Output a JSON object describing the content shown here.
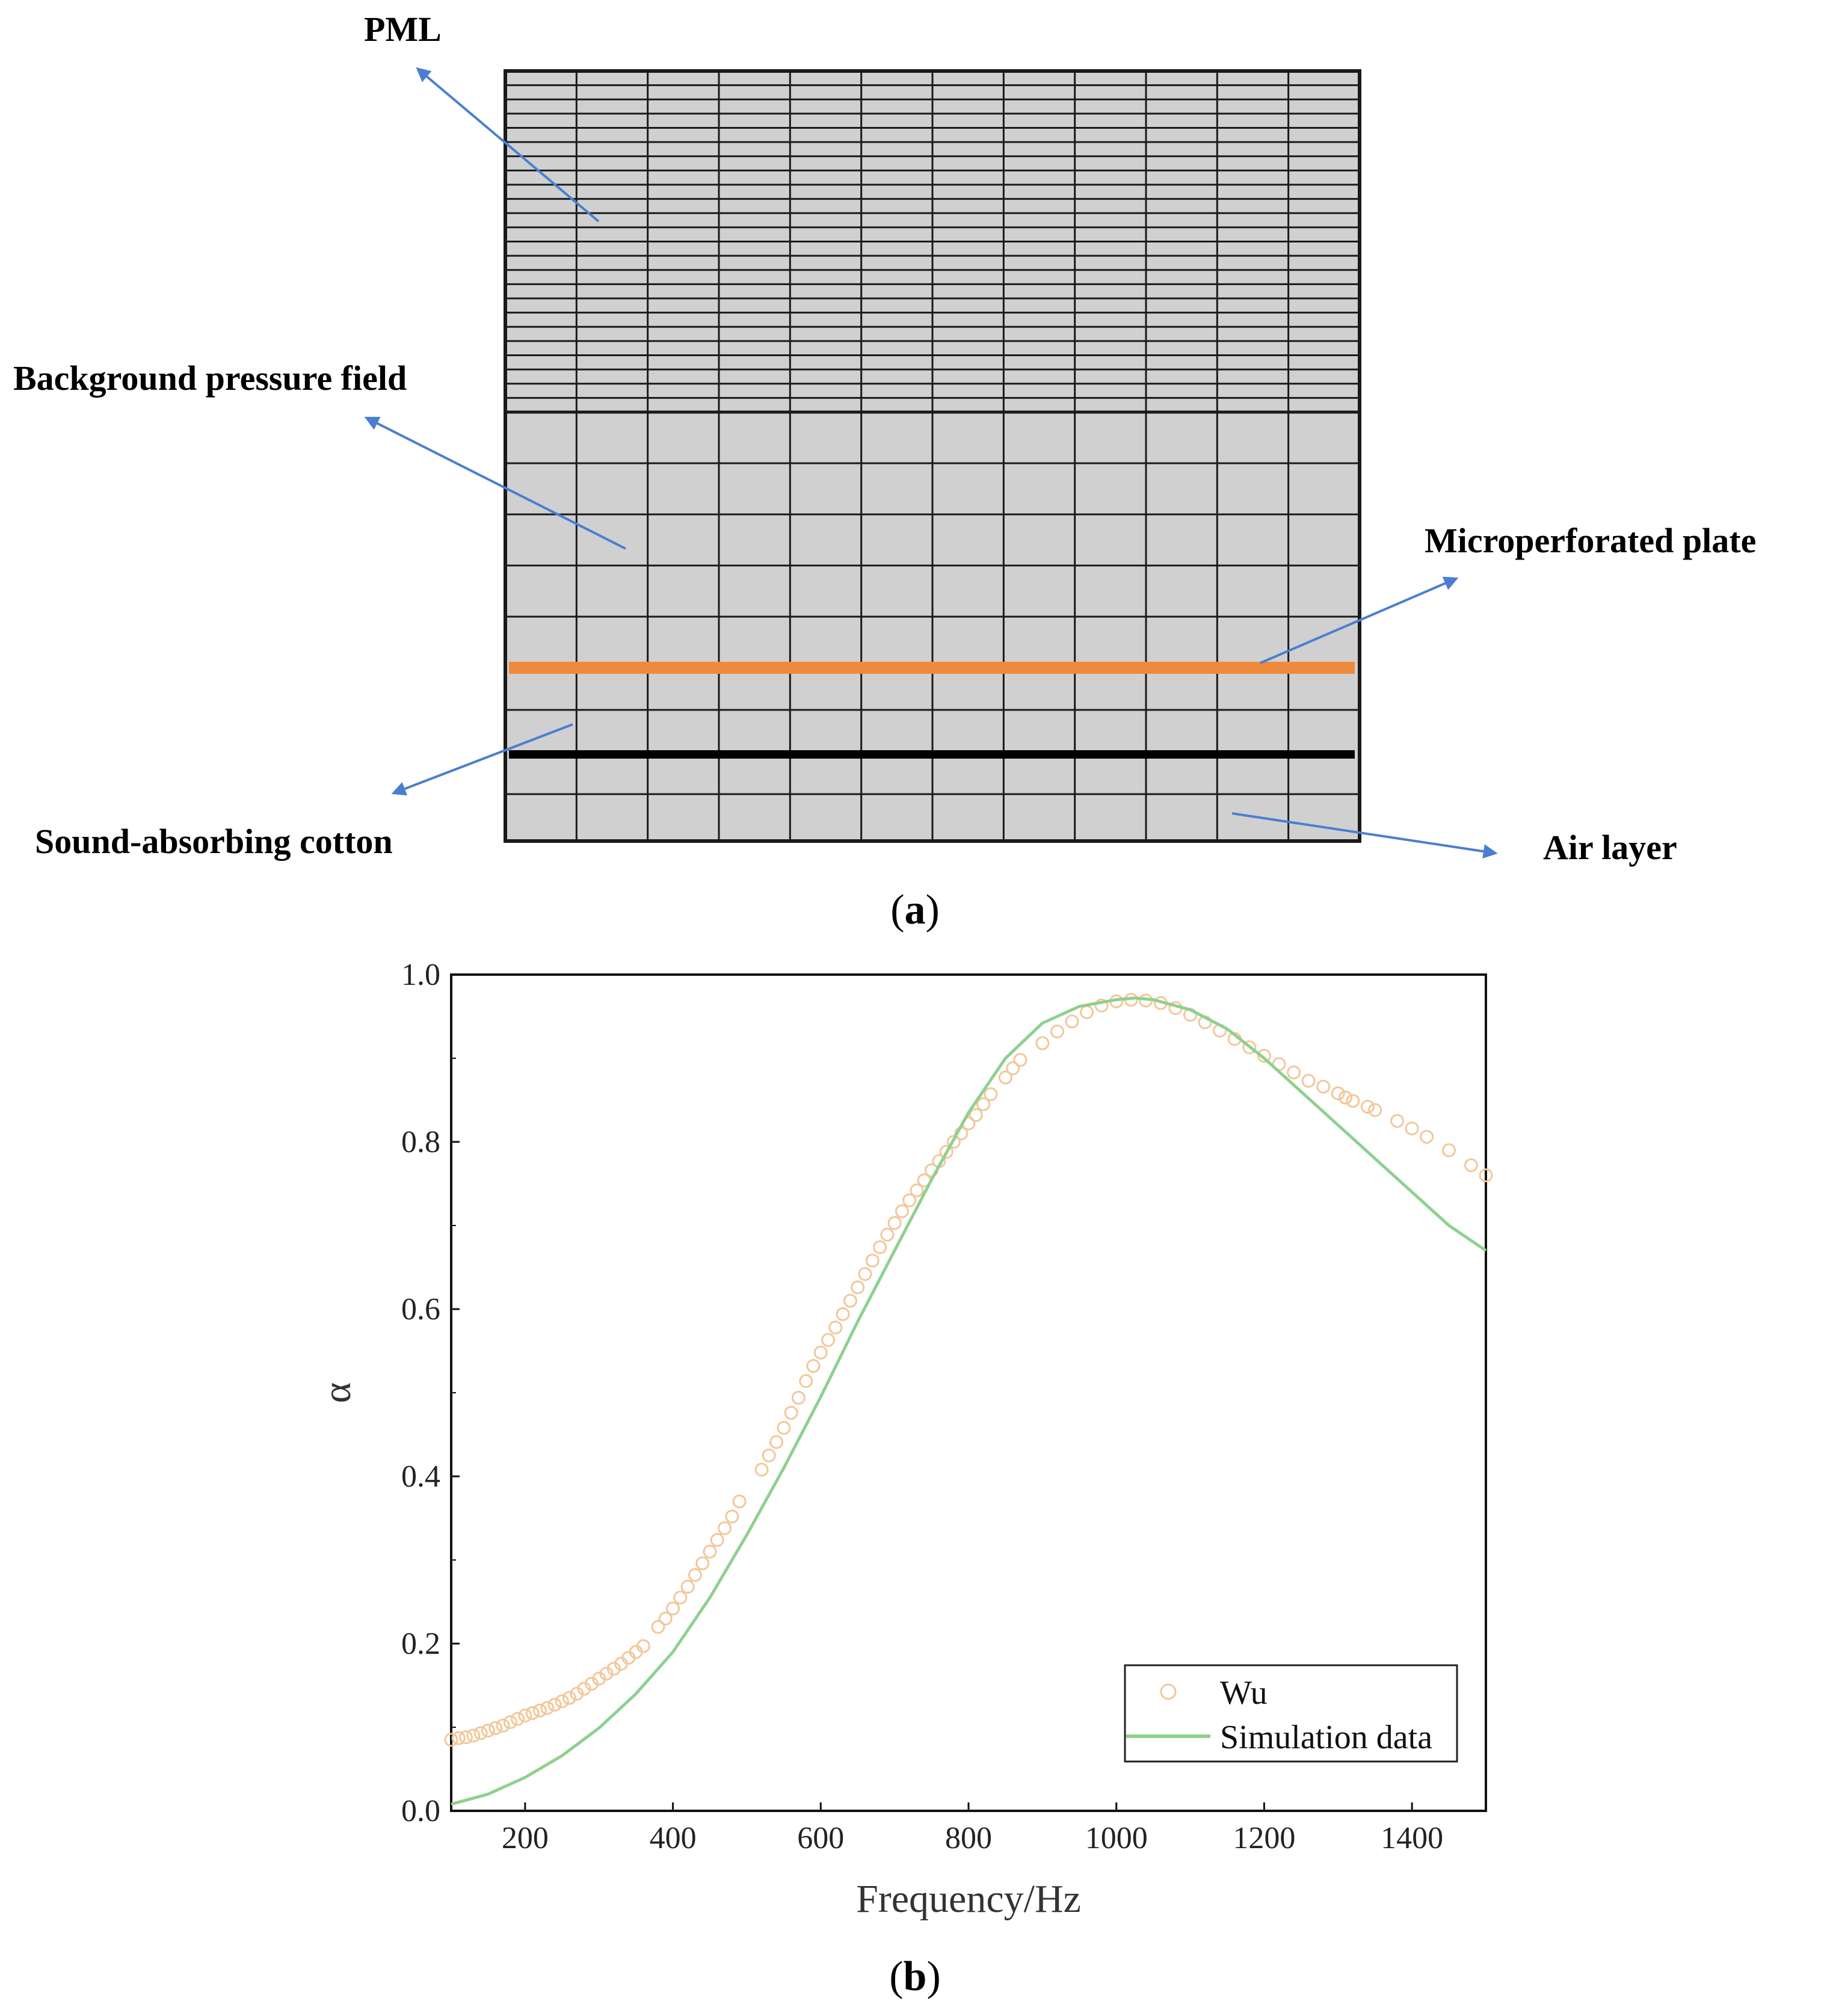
{
  "panel_a": {
    "panel_label_open": "(",
    "panel_label_letter": "a",
    "panel_label_close": ")",
    "labels": {
      "pml": "PML",
      "background": "Background pressure field",
      "plate": "Microperforated plate",
      "cotton": "Sound-absorbing cotton",
      "air": "Air layer"
    },
    "colors": {
      "fill": "#d0d0d0",
      "grid": "#1a1a1a",
      "arrow": "#4a7fd0",
      "plate": "#ef8a3c",
      "cotton_line": "#000000"
    }
  },
  "panel_b": {
    "panel_label_open": "(",
    "panel_label_letter": "b",
    "panel_label_close": ")",
    "colors": {
      "measured": "#f2c79a",
      "simulation": "#8fd08f"
    }
  },
  "chart_data": {
    "type": "line",
    "title": "",
    "xlabel": "Frequency/Hz",
    "ylabel": "α",
    "xlim": [
      100,
      1500
    ],
    "ylim": [
      0.0,
      1.0
    ],
    "xticks": [
      200,
      400,
      600,
      800,
      1000,
      1200,
      1400
    ],
    "xtick_labels": [
      "200",
      "400",
      "600",
      "800",
      "1000",
      "1200",
      "1400"
    ],
    "yticks": [
      0.0,
      0.2,
      0.4,
      0.6,
      0.8,
      1.0
    ],
    "ytick_labels": [
      "0.0",
      "0.2",
      "0.4",
      "0.6",
      "0.8",
      "1.0"
    ],
    "legend": [
      "Wu",
      "Simulation data"
    ],
    "legend_position": "bottom-right",
    "series": [
      {
        "name": "Wu",
        "style": "open-circles",
        "x": [
          100,
          110,
          120,
          130,
          140,
          150,
          160,
          170,
          180,
          190,
          200,
          210,
          220,
          230,
          240,
          250,
          260,
          270,
          280,
          290,
          300,
          310,
          320,
          330,
          340,
          350,
          360,
          380,
          390,
          400,
          410,
          420,
          430,
          440,
          450,
          460,
          470,
          480,
          490,
          520,
          530,
          540,
          550,
          560,
          570,
          580,
          590,
          600,
          610,
          620,
          630,
          640,
          650,
          660,
          670,
          680,
          690,
          700,
          710,
          720,
          730,
          740,
          750,
          760,
          770,
          780,
          790,
          800,
          810,
          820,
          830,
          850,
          860,
          870,
          900,
          920,
          940,
          960,
          980,
          1000,
          1020,
          1040,
          1060,
          1080,
          1100,
          1120,
          1140,
          1160,
          1180,
          1200,
          1220,
          1240,
          1260,
          1280,
          1300,
          1310,
          1320,
          1340,
          1350,
          1380,
          1400,
          1420,
          1450,
          1480,
          1500
        ],
        "y": [
          0.085,
          0.087,
          0.088,
          0.09,
          0.093,
          0.096,
          0.099,
          0.102,
          0.106,
          0.11,
          0.114,
          0.117,
          0.12,
          0.123,
          0.127,
          0.131,
          0.135,
          0.14,
          0.146,
          0.152,
          0.158,
          0.164,
          0.17,
          0.176,
          0.183,
          0.19,
          0.197,
          0.22,
          0.23,
          0.242,
          0.255,
          0.268,
          0.282,
          0.296,
          0.31,
          0.324,
          0.338,
          0.352,
          0.37,
          0.408,
          0.425,
          0.441,
          0.458,
          0.476,
          0.494,
          0.514,
          0.532,
          0.548,
          0.563,
          0.578,
          0.594,
          0.61,
          0.626,
          0.642,
          0.658,
          0.674,
          0.689,
          0.703,
          0.717,
          0.73,
          0.742,
          0.754,
          0.766,
          0.777,
          0.788,
          0.8,
          0.81,
          0.822,
          0.832,
          0.845,
          0.857,
          0.877,
          0.888,
          0.898,
          0.918,
          0.932,
          0.944,
          0.955,
          0.963,
          0.968,
          0.97,
          0.969,
          0.966,
          0.96,
          0.952,
          0.943,
          0.933,
          0.923,
          0.913,
          0.903,
          0.893,
          0.883,
          0.873,
          0.866,
          0.858,
          0.853,
          0.849,
          0.842,
          0.838,
          0.825,
          0.816,
          0.806,
          0.79,
          0.772,
          0.76
        ]
      },
      {
        "name": "Simulation data",
        "style": "line",
        "x": [
          100,
          150,
          200,
          250,
          300,
          350,
          400,
          450,
          500,
          550,
          600,
          650,
          700,
          750,
          800,
          850,
          900,
          950,
          1000,
          1025,
          1050,
          1100,
          1150,
          1200,
          1250,
          1300,
          1350,
          1400,
          1450,
          1500
        ],
        "y": [
          0.008,
          0.02,
          0.04,
          0.066,
          0.099,
          0.14,
          0.19,
          0.255,
          0.33,
          0.41,
          0.495,
          0.585,
          0.67,
          0.755,
          0.835,
          0.9,
          0.942,
          0.962,
          0.97,
          0.972,
          0.97,
          0.958,
          0.935,
          0.9,
          0.86,
          0.82,
          0.78,
          0.74,
          0.7,
          0.67
        ]
      }
    ]
  }
}
